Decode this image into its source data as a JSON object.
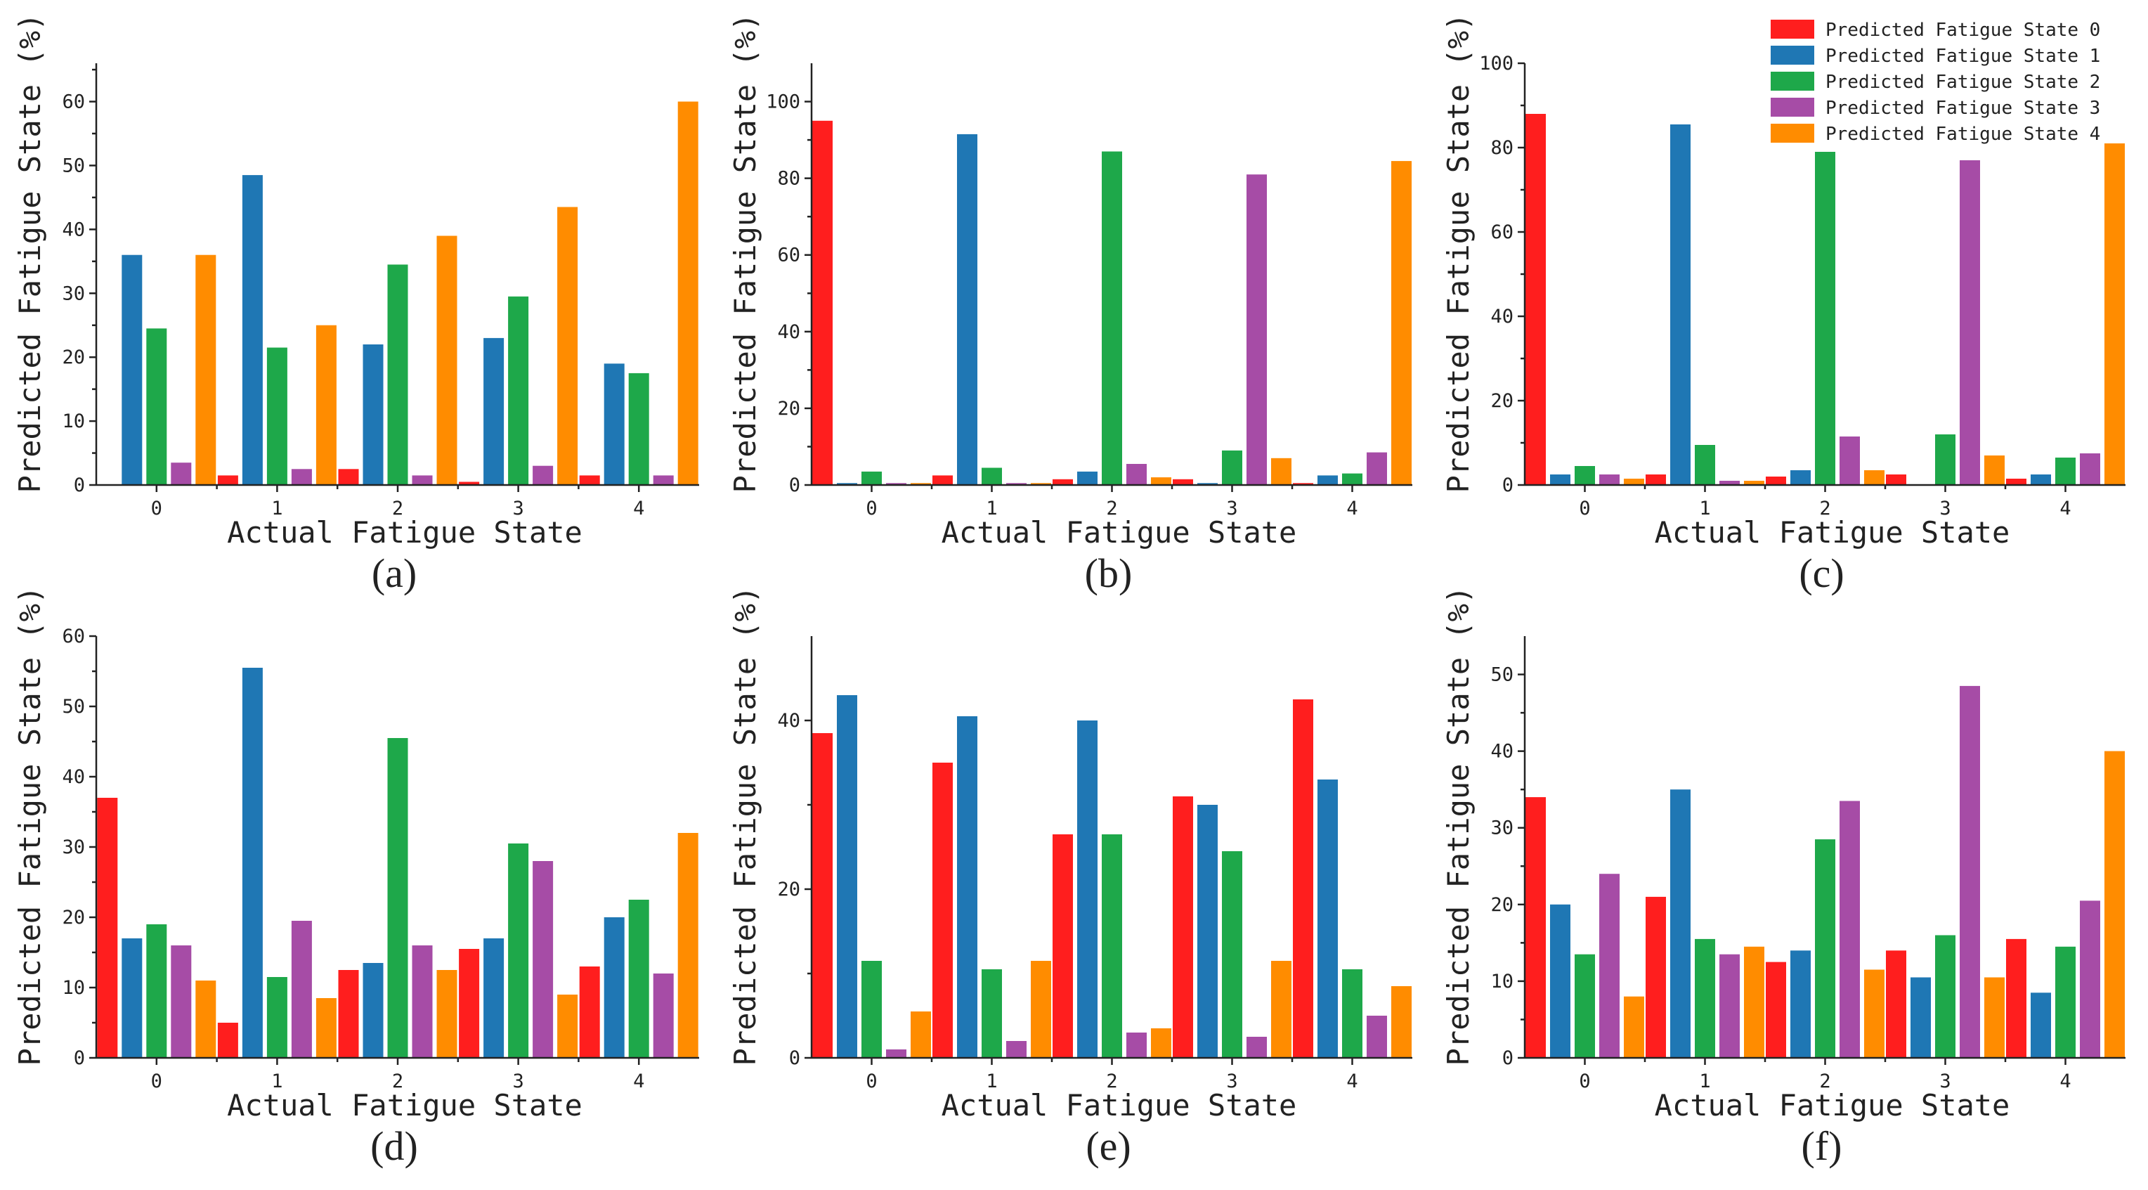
{
  "colors": [
    "#ff1e1e",
    "#1f77b4",
    "#1ea84a",
    "#a64ca6",
    "#ff8c00"
  ],
  "legend": [
    "Predicted Fatigue State 0",
    "Predicted Fatigue State 1",
    "Predicted Fatigue State 2",
    "Predicted Fatigue State 3",
    "Predicted Fatigue State 4"
  ],
  "chart_data": [
    {
      "type": "bar",
      "panel": "(a)",
      "xlabel": "Actual Fatigue State",
      "ylabel": "Predicted Fatigue State (%)",
      "categories": [
        "0",
        "1",
        "2",
        "3",
        "4"
      ],
      "ylim": [
        0,
        66
      ],
      "yticks": [
        0,
        10,
        20,
        30,
        40,
        50,
        60
      ],
      "series": [
        {
          "name": "Predicted Fatigue State 0",
          "values": [
            0,
            1.5,
            2.5,
            0.5,
            1.5
          ]
        },
        {
          "name": "Predicted Fatigue State 1",
          "values": [
            36,
            48.5,
            22,
            23,
            19
          ]
        },
        {
          "name": "Predicted Fatigue State 2",
          "values": [
            24.5,
            21.5,
            34.5,
            29.5,
            17.5
          ]
        },
        {
          "name": "Predicted Fatigue State 3",
          "values": [
            3.5,
            2.5,
            1.5,
            3,
            1.5
          ]
        },
        {
          "name": "Predicted Fatigue State 4",
          "values": [
            36,
            25,
            39,
            43.5,
            60
          ]
        }
      ]
    },
    {
      "type": "bar",
      "panel": "(b)",
      "xlabel": "Actual Fatigue State",
      "ylabel": "Predicted Fatigue State (%)",
      "categories": [
        "0",
        "1",
        "2",
        "3",
        "4"
      ],
      "ylim": [
        0,
        110
      ],
      "yticks": [
        0,
        20,
        40,
        60,
        80,
        100
      ],
      "series": [
        {
          "name": "Predicted Fatigue State 0",
          "values": [
            95,
            2.5,
            1.5,
            1.5,
            0.5
          ]
        },
        {
          "name": "Predicted Fatigue State 1",
          "values": [
            0.5,
            91.5,
            3.5,
            0.5,
            2.5
          ]
        },
        {
          "name": "Predicted Fatigue State 2",
          "values": [
            3.5,
            4.5,
            87,
            9,
            3
          ]
        },
        {
          "name": "Predicted Fatigue State 3",
          "values": [
            0.5,
            0.5,
            5.5,
            81,
            8.5
          ]
        },
        {
          "name": "Predicted Fatigue State 4",
          "values": [
            0.5,
            0.5,
            2,
            7,
            84.5
          ]
        }
      ]
    },
    {
      "type": "bar",
      "panel": "(c)",
      "xlabel": "Actual Fatigue State",
      "ylabel": "Predicted Fatigue State (%)",
      "categories": [
        "0",
        "1",
        "2",
        "3",
        "4"
      ],
      "ylim": [
        0,
        100
      ],
      "yticks": [
        0,
        20,
        40,
        60,
        80,
        100
      ],
      "series": [
        {
          "name": "Predicted Fatigue State 0",
          "values": [
            88,
            2.5,
            2,
            2.5,
            1.5
          ]
        },
        {
          "name": "Predicted Fatigue State 1",
          "values": [
            2.5,
            85.5,
            3.5,
            0,
            2.5
          ]
        },
        {
          "name": "Predicted Fatigue State 2",
          "values": [
            4.5,
            9.5,
            79,
            12,
            6.5
          ]
        },
        {
          "name": "Predicted Fatigue State 3",
          "values": [
            2.5,
            1,
            11.5,
            77,
            7.5
          ]
        },
        {
          "name": "Predicted Fatigue State 4",
          "values": [
            1.5,
            1,
            3.5,
            7,
            81
          ]
        }
      ]
    },
    {
      "type": "bar",
      "panel": "(d)",
      "xlabel": "Actual Fatigue State",
      "ylabel": "Predicted Fatigue State (%)",
      "categories": [
        "0",
        "1",
        "2",
        "3",
        "4"
      ],
      "ylim": [
        0,
        60
      ],
      "yticks": [
        0,
        10,
        20,
        30,
        40,
        50,
        60
      ],
      "series": [
        {
          "name": "Predicted Fatigue State 0",
          "values": [
            37,
            5,
            12.5,
            15.5,
            13
          ]
        },
        {
          "name": "Predicted Fatigue State 1",
          "values": [
            17,
            55.5,
            13.5,
            17,
            20
          ]
        },
        {
          "name": "Predicted Fatigue State 2",
          "values": [
            19,
            11.5,
            45.5,
            30.5,
            22.5
          ]
        },
        {
          "name": "Predicted Fatigue State 3",
          "values": [
            16,
            19.5,
            16,
            28,
            12
          ]
        },
        {
          "name": "Predicted Fatigue State 4",
          "values": [
            11,
            8.5,
            12.5,
            9,
            32
          ]
        }
      ]
    },
    {
      "type": "bar",
      "panel": "(e)",
      "xlabel": "Actual Fatigue State",
      "ylabel": "Predicted Fatigue State (%)",
      "categories": [
        "0",
        "1",
        "2",
        "3",
        "4"
      ],
      "ylim": [
        0,
        50
      ],
      "yticks": [
        0,
        20,
        40
      ],
      "series": [
        {
          "name": "Predicted Fatigue State 0",
          "values": [
            38.5,
            35,
            26.5,
            31,
            42.5
          ]
        },
        {
          "name": "Predicted Fatigue State 1",
          "values": [
            43,
            40.5,
            40,
            30,
            33
          ]
        },
        {
          "name": "Predicted Fatigue State 2",
          "values": [
            11.5,
            10.5,
            26.5,
            24.5,
            10.5
          ]
        },
        {
          "name": "Predicted Fatigue State 3",
          "values": [
            1,
            2,
            3,
            2.5,
            5
          ]
        },
        {
          "name": "Predicted Fatigue State 4",
          "values": [
            5.5,
            11.5,
            3.5,
            11.5,
            8.5
          ]
        }
      ]
    },
    {
      "type": "bar",
      "panel": "(f)",
      "xlabel": "Actual Fatigue State",
      "ylabel": "Predicted Fatigue State (%)",
      "categories": [
        "0",
        "1",
        "2",
        "3",
        "4"
      ],
      "ylim": [
        0,
        55
      ],
      "yticks": [
        0,
        10,
        20,
        30,
        40,
        50
      ],
      "series": [
        {
          "name": "Predicted Fatigue State 0",
          "values": [
            34,
            21,
            12.5,
            14,
            15.5
          ]
        },
        {
          "name": "Predicted Fatigue State 1",
          "values": [
            20,
            35,
            14,
            10.5,
            8.5
          ]
        },
        {
          "name": "Predicted Fatigue State 2",
          "values": [
            13.5,
            15.5,
            28.5,
            16,
            14.5
          ]
        },
        {
          "name": "Predicted Fatigue State 3",
          "values": [
            24,
            13.5,
            33.5,
            48.5,
            20.5
          ]
        },
        {
          "name": "Predicted Fatigue State 4",
          "values": [
            8,
            14.5,
            11.5,
            10.5,
            40
          ]
        }
      ]
    }
  ]
}
